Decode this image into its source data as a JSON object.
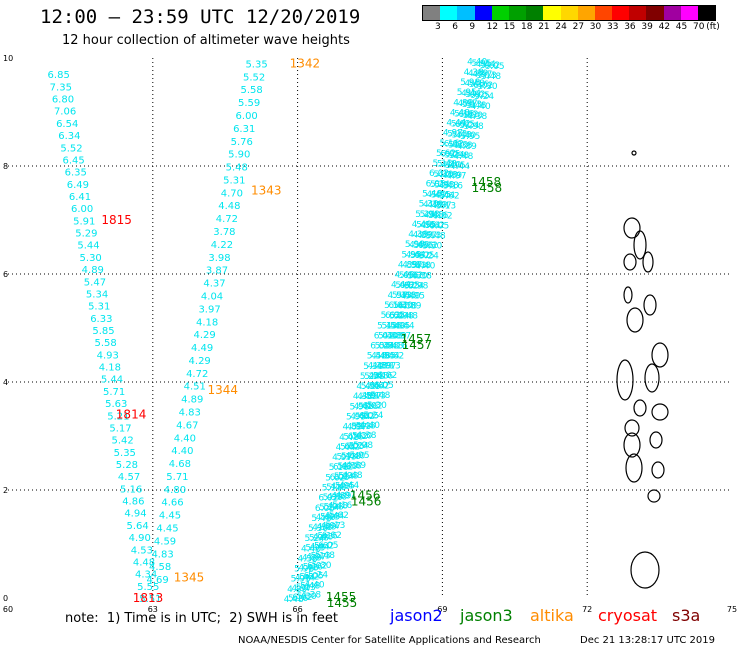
{
  "header": {
    "title": "12:00 — 23:59 UTC 12/20/2019",
    "subtitle": "12 hour collection of altimeter wave heights"
  },
  "legend": {
    "unit": "(ft)",
    "labels": [
      "3",
      "6",
      "9",
      "12",
      "15",
      "18",
      "21",
      "24",
      "27",
      "30",
      "33",
      "36",
      "39",
      "42",
      "45",
      "70"
    ],
    "colors": [
      "#808080",
      "#00ffff",
      "#00bfff",
      "#0000ff",
      "#00d000",
      "#00a000",
      "#008000",
      "#ffff00",
      "#ffd700",
      "#ffa500",
      "#ff4500",
      "#ff0000",
      "#c00000",
      "#800000",
      "#a000a0",
      "#ff00ff",
      "#000000"
    ]
  },
  "note": "note:  1) Time is in UTC;  2) SWH is in feet",
  "satellites": [
    {
      "name": "jason2",
      "color": "#0000ff"
    },
    {
      "name": "jason3",
      "color": "#008000"
    },
    {
      "name": "altika",
      "color": "#ff8c00"
    },
    {
      "name": "cryosat",
      "color": "#ff0000"
    },
    {
      "name": "s3a",
      "color": "#800000"
    }
  ],
  "footer": {
    "left": "NOAA/NESDIS Center for Satellite Applications and Research",
    "right": "Dec 21 13:28:17 UTC 2019"
  },
  "colors": {
    "swh_cyan": "#00e5ee",
    "jason3_green": "#008000",
    "altika_orange": "#ff8c00",
    "cryosat_red": "#ff0000",
    "grid": "#000000"
  },
  "chart_data": {
    "type": "scatter",
    "xlim": [
      60,
      75
    ],
    "ylim": [
      0,
      10
    ],
    "x_ticks": [
      60,
      63,
      66,
      69,
      72,
      75
    ],
    "y_ticks": [
      0,
      2,
      4,
      6,
      8,
      10
    ],
    "grid": true,
    "tracks": [
      {
        "id": "cryosat-left",
        "label_color": "#ff0000",
        "start": [
          61.05,
          9.7
        ],
        "end": [
          62.95,
          0.0
        ],
        "values": [
          "6.85",
          "7.35",
          "6.80",
          "7.06",
          "6.54",
          "6.34",
          "5.52",
          "6.45",
          "6.35",
          "6.49",
          "6.41",
          "6.00",
          "5.91",
          "5.29",
          "5.44",
          "5.30",
          "4.89",
          "5.47",
          "5.34",
          "5.31",
          "6.33",
          "5.85",
          "5.58",
          "4.93",
          "4.18",
          "5.44",
          "5.71",
          "5.63",
          "5.21",
          "5.17",
          "5.42",
          "5.35",
          "5.28",
          "4.57",
          "5.16",
          "4.86",
          "4.94",
          "5.64",
          "4.90",
          "4.53",
          "4.48",
          "4.34",
          "5.55",
          "5.51"
        ],
        "times": [
          {
            "label": "1815",
            "x": 62.25,
            "y": 7.0
          },
          {
            "label": "1814",
            "x": 62.55,
            "y": 3.4
          },
          {
            "label": "1813",
            "x": 62.9,
            "y": 0.0
          }
        ]
      },
      {
        "id": "altika-middle",
        "label_color": "#ff8c00",
        "start": [
          65.15,
          9.9
        ],
        "end": [
          63.1,
          0.35
        ],
        "values": [
          "5.35",
          "5.52",
          "5.58",
          "5.59",
          "6.00",
          "6.31",
          "5.76",
          "5.90",
          "5.48",
          "5.31",
          "4.70",
          "4.48",
          "4.72",
          "3.78",
          "4.22",
          "3.98",
          "3.87",
          "4.37",
          "4.04",
          "3.97",
          "4.18",
          "4.29",
          "4.49",
          "4.29",
          "4.72",
          "4.51",
          "4.89",
          "4.83",
          "4.67",
          "4.40",
          "4.40",
          "4.68",
          "5.71",
          "4.80",
          "4.66",
          "4.45",
          "4.45",
          "4.59",
          "4.83",
          "4.58",
          "4.69"
        ],
        "times": [
          {
            "label": "1342",
            "x": 66.15,
            "y": 9.9
          },
          {
            "label": "1343",
            "x": 65.35,
            "y": 7.55
          },
          {
            "label": "1344",
            "x": 64.45,
            "y": 3.85
          },
          {
            "label": "1345",
            "x": 63.75,
            "y": 0.38
          }
        ]
      },
      {
        "id": "jason3-diagonal",
        "label_color": "#008000",
        "start": [
          69.9,
          9.95
        ],
        "end": [
          66.1,
          0.0
        ],
        "values_visible": [
          "4.40",
          "4.38",
          "5.98",
          "5.95",
          "4.89",
          "4.48",
          "4.44",
          "4.97",
          "5.16",
          "5.62",
          "5.13",
          "6.02",
          "6.05",
          "5.48",
          "5.30",
          "5.24"
        ],
        "times": [
          {
            "label": "1458",
            "x": 69.9,
            "y": 7.7
          },
          {
            "label": "1457",
            "x": 68.45,
            "y": 4.8
          },
          {
            "label": "1456",
            "x": 67.4,
            "y": 1.9
          },
          {
            "label": "1455",
            "x": 66.9,
            "y": 0.02
          }
        ]
      }
    ]
  }
}
